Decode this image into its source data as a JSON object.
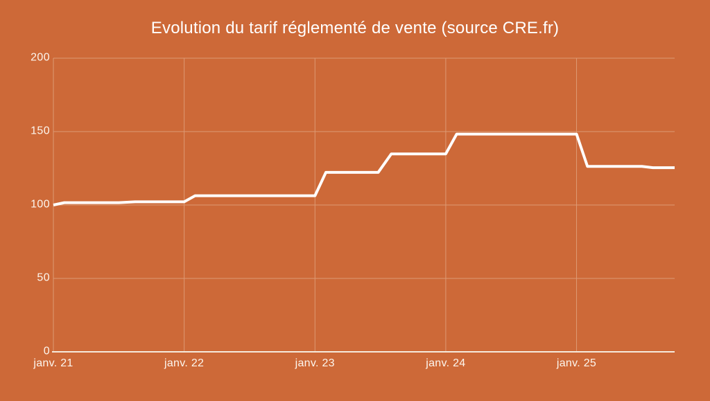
{
  "page": {
    "background_color": "#cd6938"
  },
  "chart_data": {
    "type": "line",
    "title": "Evolution du tarif réglementé de vente (source CRE.fr)",
    "xlabel": "",
    "ylabel": "",
    "ylim": [
      0,
      200
    ],
    "xlim_months_from_jan21": [
      0,
      57
    ],
    "grid": true,
    "legend_position": "none",
    "yticks": [
      {
        "label": "200",
        "value": 200
      },
      {
        "label": "150",
        "value": 150
      },
      {
        "label": "100",
        "value": 100
      },
      {
        "label": "50",
        "value": 50
      },
      {
        "label": "0",
        "value": 0
      }
    ],
    "xticks": [
      {
        "label": "janv. 21",
        "month": 0
      },
      {
        "label": "janv. 22",
        "month": 12
      },
      {
        "label": "janv. 23",
        "month": 24
      },
      {
        "label": "janv. 24",
        "month": 36
      },
      {
        "label": "janv. 25",
        "month": 48
      }
    ],
    "series": [
      {
        "points": [
          [
            0,
            100
          ],
          [
            1,
            101.6
          ],
          [
            6,
            101.6
          ],
          [
            7.5,
            102.2
          ],
          [
            12,
            102.2
          ],
          [
            13,
            106.3
          ],
          [
            24,
            106.3
          ],
          [
            25,
            122.2
          ],
          [
            29.8,
            122.2
          ],
          [
            31,
            134.8
          ],
          [
            36,
            134.8
          ],
          [
            37,
            148.3
          ],
          [
            48,
            148.3
          ],
          [
            49,
            126.3
          ],
          [
            54,
            126.3
          ],
          [
            55,
            125.4
          ],
          [
            57,
            125.4
          ]
        ]
      }
    ],
    "colors": {
      "background": "#cd6938",
      "line": "#ffffff",
      "gridline": "#dd9a74",
      "axis": "#f6ebdd",
      "tick_text": "#fdf6ee",
      "title_text": "#ffffff"
    }
  }
}
